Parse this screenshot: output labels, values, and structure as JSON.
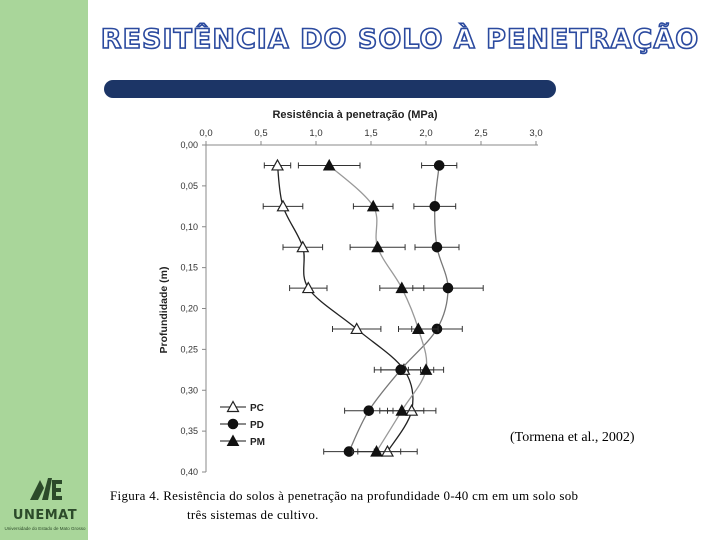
{
  "slide": {
    "title": "RESITÊNCIA DO SOLO À PENETRAÇÃO",
    "citation": "(Tormena et al., 2002)",
    "caption_line1": "Figura 4. Resistência do solos à penetração na profundidade 0-40 cm em um solo sob",
    "caption_line2": "três sistemas de cultivo.",
    "logo_name": "UNEMAT",
    "logo_subtitle": "Universidade do Estado de Mato Grosso",
    "colors": {
      "sidebar": "#a9d69a",
      "title_outline": "#2b4a9f",
      "title_bar": "#1c3566"
    }
  },
  "chart_data": {
    "type": "line",
    "title": "",
    "xlabel": "Resistência à penetração (MPa)",
    "ylabel": "Profundidade (m)",
    "x_axis_position": "top",
    "xlim": [
      0,
      3
    ],
    "ylim": [
      0,
      0.4
    ],
    "y_inverted": true,
    "xticks": [
      "0,0",
      "0,5",
      "1,0",
      "1,5",
      "2,0",
      "2,5",
      "3,0"
    ],
    "yticks": [
      "0,00",
      "0,05",
      "0,10",
      "0,15",
      "0,20",
      "0,25",
      "0,30",
      "0,35",
      "0,40"
    ],
    "grid": false,
    "legend_position": "bottom-left",
    "series": [
      {
        "name": "PC",
        "marker": "open-triangle",
        "points": [
          {
            "depth": 0.025,
            "value": 0.65,
            "err": 0.12
          },
          {
            "depth": 0.075,
            "value": 0.7,
            "err": 0.18
          },
          {
            "depth": 0.125,
            "value": 0.88,
            "err": 0.18
          },
          {
            "depth": 0.175,
            "value": 0.93,
            "err": 0.17
          },
          {
            "depth": 0.225,
            "value": 1.37,
            "err": 0.22
          },
          {
            "depth": 0.275,
            "value": 1.8,
            "err": 0.27
          },
          {
            "depth": 0.325,
            "value": 1.87,
            "err": 0.22
          },
          {
            "depth": 0.375,
            "value": 1.65,
            "err": 0.27
          }
        ]
      },
      {
        "name": "PD",
        "marker": "filled-circle",
        "points": [
          {
            "depth": 0.025,
            "value": 2.12,
            "err": 0.16
          },
          {
            "depth": 0.075,
            "value": 2.08,
            "err": 0.19
          },
          {
            "depth": 0.125,
            "value": 2.1,
            "err": 0.2
          },
          {
            "depth": 0.175,
            "value": 2.2,
            "err": 0.32
          },
          {
            "depth": 0.225,
            "value": 2.1,
            "err": 0.23
          },
          {
            "depth": 0.275,
            "value": 1.77,
            "err": 0.18
          },
          {
            "depth": 0.325,
            "value": 1.48,
            "err": 0.22
          },
          {
            "depth": 0.375,
            "value": 1.3,
            "err": 0.23
          }
        ]
      },
      {
        "name": "PM",
        "marker": "filled-triangle",
        "points": [
          {
            "depth": 0.025,
            "value": 1.12,
            "err": 0.28
          },
          {
            "depth": 0.075,
            "value": 1.52,
            "err": 0.18
          },
          {
            "depth": 0.125,
            "value": 1.56,
            "err": 0.25
          },
          {
            "depth": 0.175,
            "value": 1.78,
            "err": 0.2
          },
          {
            "depth": 0.225,
            "value": 1.93,
            "err": 0.18
          },
          {
            "depth": 0.275,
            "value": 2.0,
            "err": 0.16
          },
          {
            "depth": 0.325,
            "value": 1.78,
            "err": 0.2
          },
          {
            "depth": 0.375,
            "value": 1.55,
            "err": 0.22
          }
        ]
      }
    ]
  }
}
